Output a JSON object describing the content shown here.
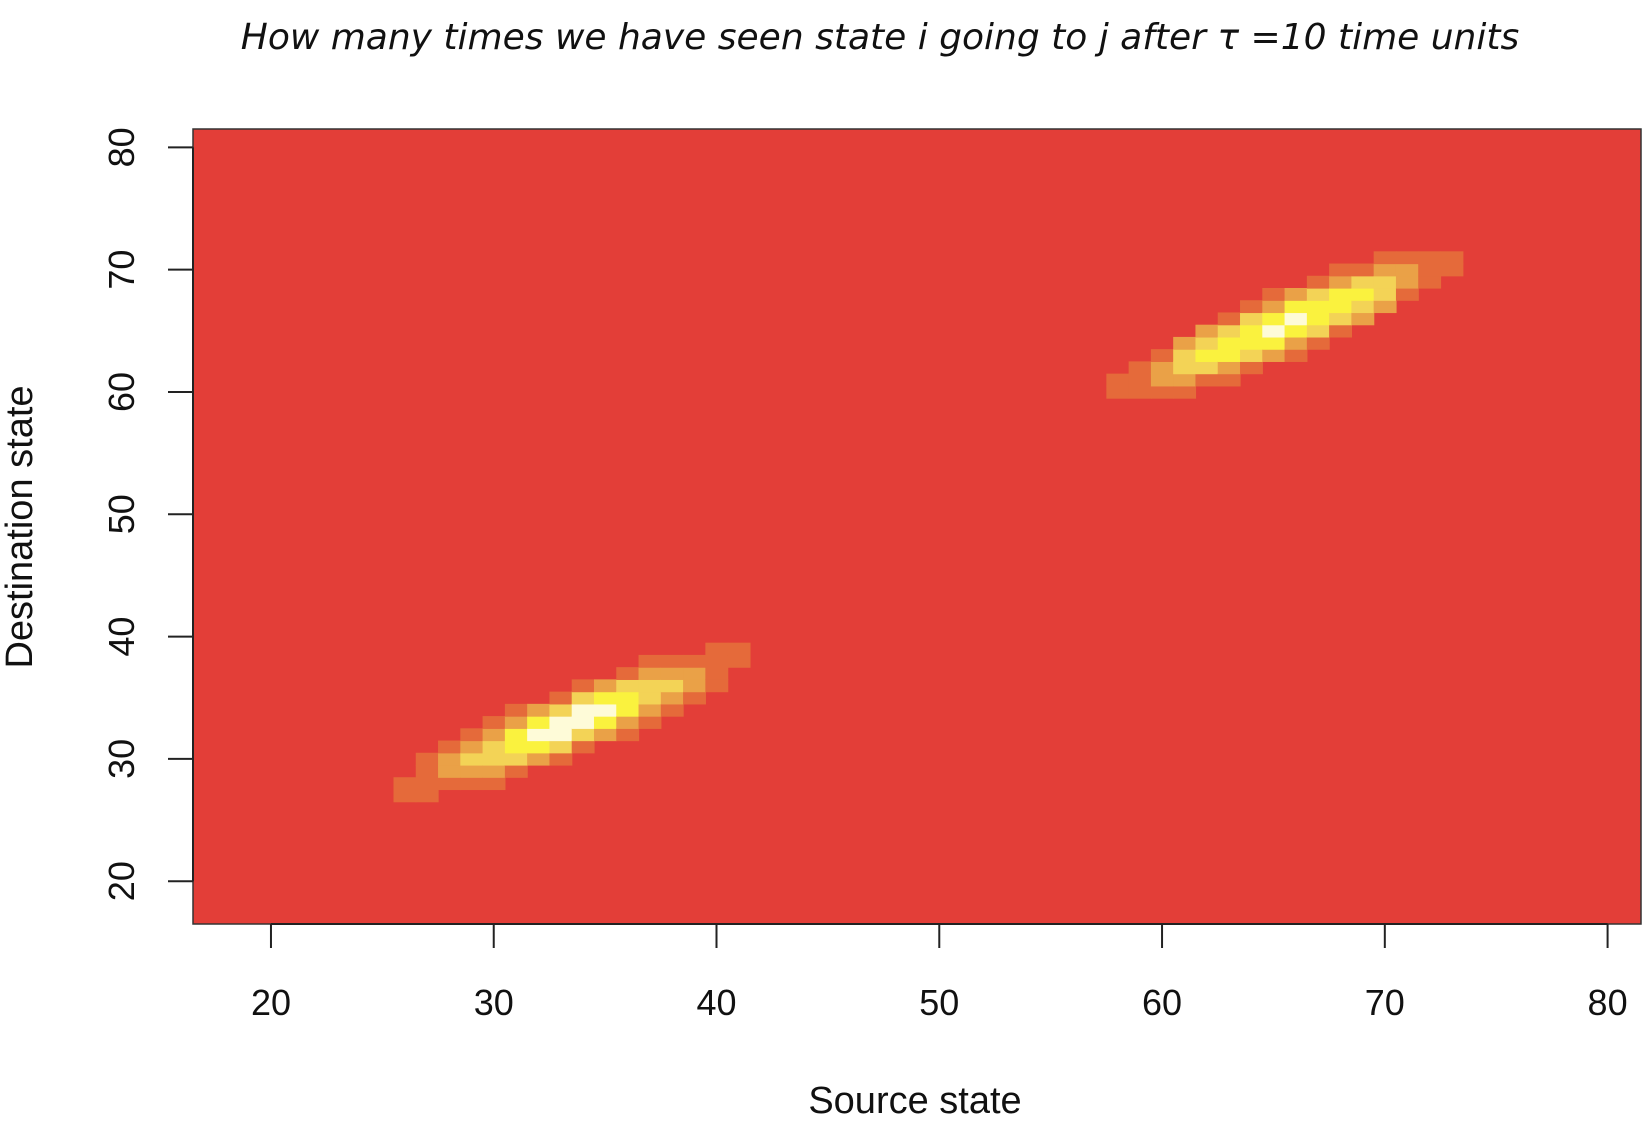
{
  "chart_data": {
    "type": "heatmap",
    "title": "How many times we have seen state i going to j after  τ =10 time units",
    "xlabel": "Source state",
    "ylabel": "Destination state",
    "xlim": [
      16.5,
      81.5
    ],
    "ylim": [
      16.5,
      81.5
    ],
    "xticks": [
      20,
      30,
      40,
      50,
      60,
      70,
      80
    ],
    "yticks": [
      20,
      30,
      40,
      50,
      60,
      70,
      80
    ],
    "x_range": [
      17,
      81
    ],
    "y_range": [
      17,
      81
    ],
    "background_level": 0,
    "levels": 5,
    "colors": {
      "0": "#e33e38",
      "1": "#e56a3a",
      "2": "#eaa147",
      "3": "#f3d356",
      "4": "#faf23e",
      "5": "#fefbd8"
    },
    "clusters": [
      {
        "center_x": 33.5,
        "center_y": 33.0,
        "dir": [
          0.8,
          0.6
        ],
        "sd_major": 5.3,
        "sd_minor": 1.3,
        "peak": 5.5
      },
      {
        "center_x": 65.5,
        "center_y": 65.5,
        "dir": [
          0.8,
          0.6
        ],
        "sd_major": 5.6,
        "sd_minor": 1.3,
        "peak": 5.5
      }
    ],
    "grid": false,
    "legend": "none"
  }
}
